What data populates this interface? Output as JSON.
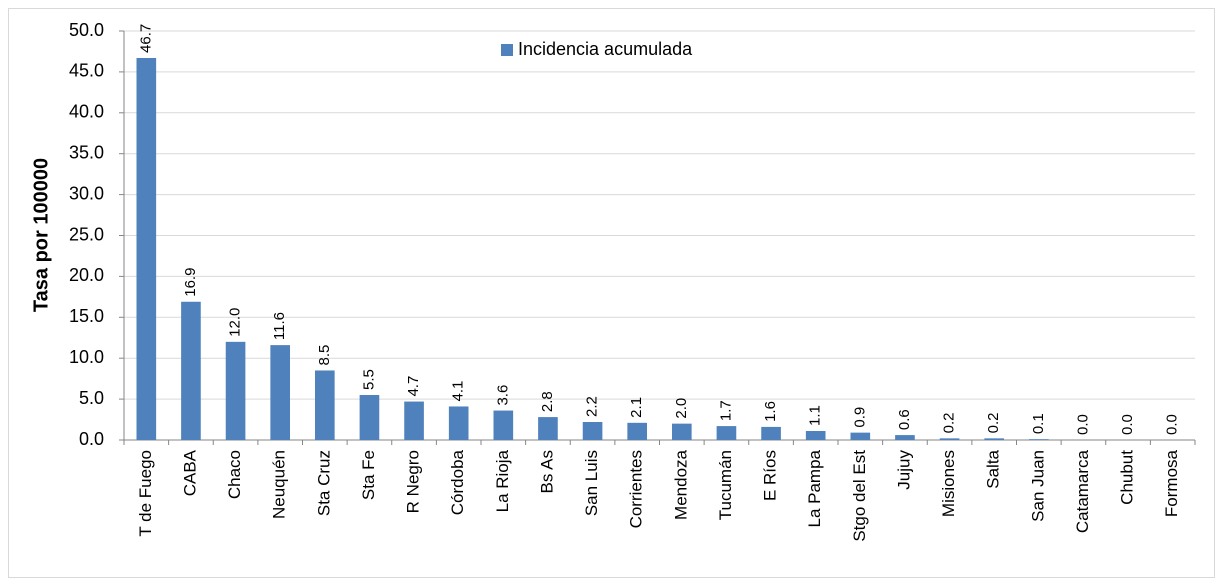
{
  "chart_data": {
    "type": "bar",
    "y_label": "Tasa por 100000",
    "categories": [
      "T de Fuego",
      "CABA",
      "Chaco",
      "Neuquén",
      "Sta Cruz",
      "Sta Fe",
      "R Negro",
      "Córdoba",
      "La Rioja",
      "Bs As",
      "San Luis",
      "Corrientes",
      "Mendoza",
      "Tucumán",
      "E Ríos",
      "La Pampa",
      "Stgo del Est",
      "Jujuy",
      "Misiones",
      "Salta",
      "San Juan",
      "Catamarca",
      "Chubut",
      "Formosa"
    ],
    "series": [
      {
        "name": "Incidencia acumulada",
        "color": "#4f81bd",
        "values": [
          46.7,
          16.9,
          12,
          11.6,
          8.5,
          5.5,
          4.7,
          4.1,
          3.6,
          2.8,
          2.2,
          2.1,
          2,
          1.7,
          1.6,
          1.1,
          0.9,
          0.6,
          0.2,
          0.2,
          0.1,
          0,
          0,
          0
        ],
        "value_labels": [
          "46.7",
          "16.9",
          "12.0",
          "11.6",
          "8.5",
          "5.5",
          "4.7",
          "4.1",
          "3.6",
          "2.8",
          "2.2",
          "2.1",
          "2.0",
          "1.7",
          "1.6",
          "1.1",
          "0.9",
          "0.6",
          "0.2",
          "0.2",
          "0.1",
          "0.0",
          "0.0",
          "0.0"
        ]
      }
    ],
    "ylim": [
      0,
      50
    ],
    "yticks": [
      {
        "value": 0,
        "label": "0.0"
      },
      {
        "value": 5,
        "label": "5.0"
      },
      {
        "value": 10,
        "label": "10.0"
      },
      {
        "value": 15,
        "label": "15.0"
      },
      {
        "value": 20,
        "label": "20.0"
      },
      {
        "value": 25,
        "label": "25.0"
      },
      {
        "value": 30,
        "label": "30.0"
      },
      {
        "value": 35,
        "label": "35.0"
      },
      {
        "value": 40,
        "label": "40.0"
      },
      {
        "value": 45,
        "label": "45.0"
      },
      {
        "value": 50,
        "label": "50.0"
      }
    ],
    "grid": true
  }
}
